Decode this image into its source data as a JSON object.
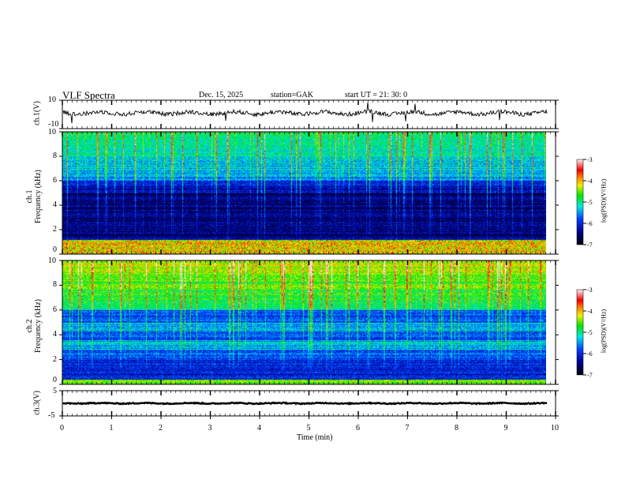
{
  "header": {
    "title": "VLF  Spectra",
    "date": "Dec. 15,  2025",
    "station": "station=GAK",
    "start": "start  UT  =    21: 30: 0"
  },
  "chart_data": {
    "type": "heatmap",
    "xlabel": "Time  (min)",
    "xlim": [
      0,
      10
    ],
    "xticks": [
      "0",
      "1",
      "2",
      "3",
      "4",
      "5",
      "6",
      "7",
      "8",
      "9",
      "10"
    ],
    "data_end_min": 9.83,
    "panels": [
      {
        "name": "ch1-waveform",
        "type": "line",
        "ylabel": "ch.1(V)",
        "ylim": [
          -10,
          10
        ],
        "yticks": [
          "10",
          "-10"
        ],
        "mean_level": 1
      },
      {
        "name": "ch1-spectrogram",
        "ylabel_top": "ch.1",
        "ylabel": "Frequency  (kHz)",
        "ylim": [
          0,
          10
        ],
        "yticks": [
          "10",
          "8",
          "6",
          "4",
          "2",
          "0"
        ],
        "colorbar": {
          "label": "log(PSD)(V²/Hz)",
          "range": [
            -7,
            -3
          ],
          "ticks": [
            "-3",
            "-4",
            "-5",
            "-6",
            "-7"
          ]
        }
      },
      {
        "name": "ch2-spectrogram",
        "ylabel_top": "ch.2",
        "ylabel": "Frequency  (kHz)",
        "ylim": [
          0,
          10
        ],
        "yticks": [
          "10",
          "8",
          "6",
          "4",
          "2",
          "0"
        ],
        "colorbar": {
          "label": "log(PSD)(V²/Hz)",
          "range": [
            -7,
            -3
          ],
          "ticks": [
            "-3",
            "-4",
            "-5",
            "-6",
            "-7"
          ]
        }
      },
      {
        "name": "ch3-waveform",
        "type": "line",
        "ylabel": "ch.3(V)",
        "ylim": [
          -5,
          5
        ],
        "yticks": [
          "5",
          "-5"
        ],
        "mean_level": 0
      }
    ]
  }
}
